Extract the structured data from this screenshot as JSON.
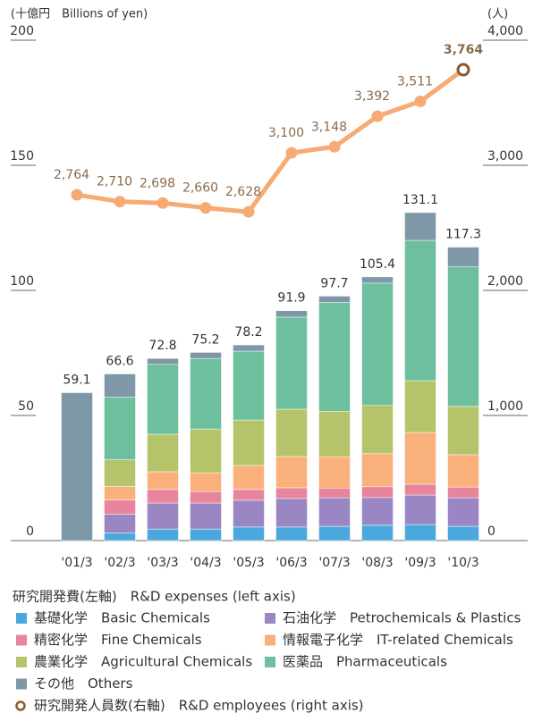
{
  "chart_data": {
    "type": "bar",
    "left_axis_label": "(十億円　Billions of yen)",
    "right_axis_label": "(人)",
    "legend_title": "研究開発費(左軸)　R&D expenses (left axis)",
    "categories": [
      "'01/3",
      "'02/3",
      "'03/3",
      "'04/3",
      "'05/3",
      "'06/3",
      "'07/3",
      "'08/3",
      "'09/3",
      "'10/3"
    ],
    "totals": [
      59.1,
      66.6,
      72.8,
      75.2,
      78.2,
      91.9,
      97.7,
      105.4,
      131.1,
      117.3
    ],
    "series": [
      {
        "name": "基礎化学　Basic Chemicals",
        "color": "#4aa8dc",
        "values": [
          null,
          3,
          4.6,
          4.6,
          5.4,
          5.4,
          5.7,
          6.1,
          6.4,
          5.7
        ]
      },
      {
        "name": "石油化学　Petrochemicals & Plastics",
        "color": "#9b86c4",
        "values": [
          null,
          7.5,
          10.4,
          10.4,
          10.7,
          11.4,
          11.4,
          11.1,
          11.8,
          11.4
        ]
      },
      {
        "name": "精密化学　Fine Chemicals",
        "color": "#e8849c",
        "values": [
          null,
          5.7,
          5.4,
          4.6,
          4.3,
          4.3,
          3.9,
          4.3,
          4.3,
          4.3
        ]
      },
      {
        "name": "情報電子化学　IT-related Chemicals",
        "color": "#f9b07a",
        "values": [
          null,
          5.4,
          7.1,
          7.5,
          9.6,
          12.5,
          12.5,
          13.2,
          20.7,
          12.9
        ]
      },
      {
        "name": "農業化学　Agricultural Chemicals",
        "color": "#b5c46a",
        "values": [
          null,
          10.7,
          15,
          17.5,
          18.2,
          18.9,
          18.2,
          19.3,
          20.7,
          19.3
        ]
      },
      {
        "name": "医薬品　Pharmaceuticals",
        "color": "#6dbf9e",
        "values": [
          null,
          25,
          27.9,
          28.2,
          27.5,
          36.8,
          43.5,
          48.9,
          56.1,
          55.8
        ]
      },
      {
        "name": "その他　Others",
        "color": "#7f98a8",
        "values": [
          59.1,
          9.3,
          2.4,
          2.4,
          2.5,
          2.6,
          2.5,
          2.5,
          11.1,
          7.9
        ]
      },
      {
        "name": "研究開発人員数(右軸)　R&D employees (right axis)",
        "type": "line",
        "axis": "y2",
        "color": "#f5ab73",
        "marker_color": "#8a5a32",
        "values": [
          2764,
          2710,
          2698,
          2660,
          2628,
          3100,
          3148,
          3392,
          3511,
          3764
        ],
        "value_labels": [
          "2,764",
          "2,710",
          "2,698",
          "2,660",
          "2,628",
          "3,100",
          "3,148",
          "3,392",
          "3,511",
          "3,764"
        ]
      }
    ],
    "ylim": [
      0,
      200
    ],
    "yticks": [
      0,
      50,
      100,
      150,
      200
    ],
    "y2lim": [
      0,
      4000
    ],
    "y2ticks": [
      {
        "value": 0,
        "label": "0"
      },
      {
        "value": 1000,
        "label": "1,000"
      },
      {
        "value": 2000,
        "label": "2,000"
      },
      {
        "value": 3000,
        "label": "3,000"
      },
      {
        "value": 4000,
        "label": "4,000"
      }
    ]
  }
}
